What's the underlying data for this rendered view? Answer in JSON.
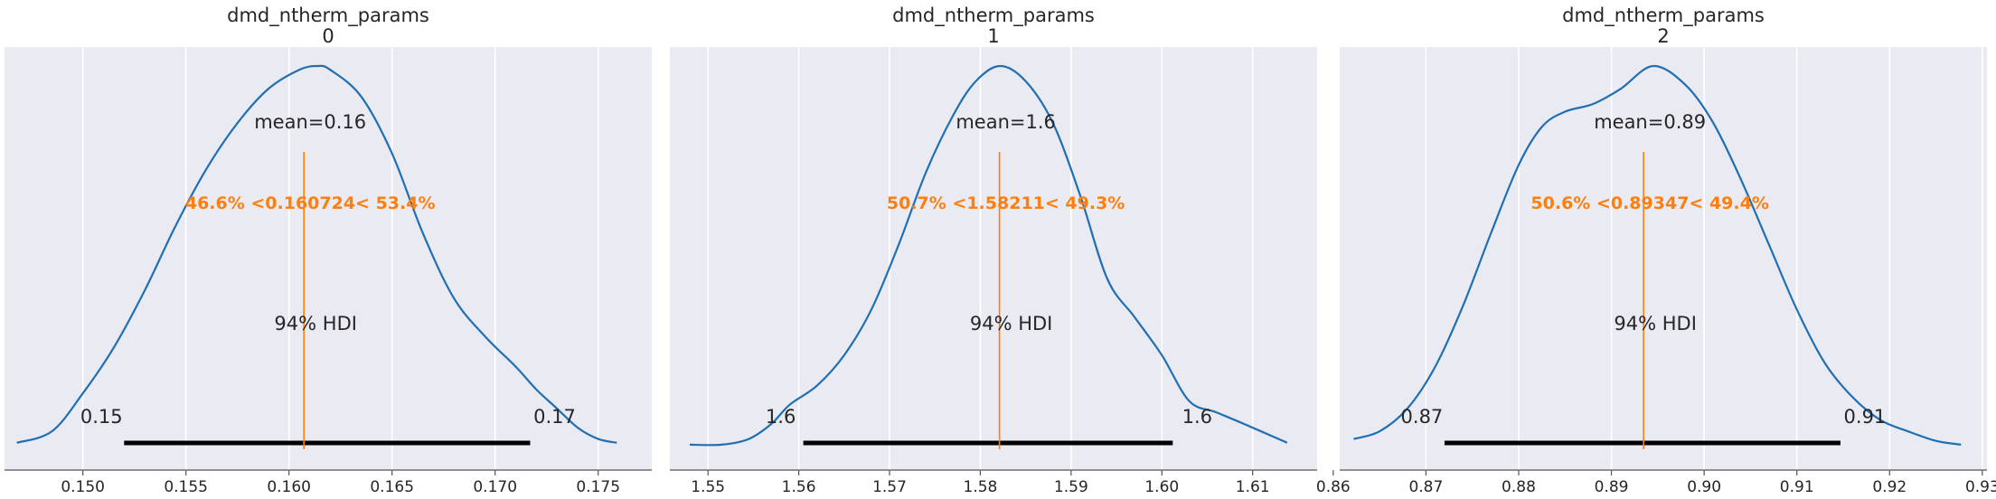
{
  "chart_data": [
    {
      "type": "area",
      "title": "dmd_ntherm_params",
      "subtitle": "0",
      "xlim": [
        0.1462,
        0.1776
      ],
      "xticks": [
        0.15,
        0.155,
        0.16,
        0.165,
        0.17,
        0.175
      ],
      "xtick_labels": [
        "0.150",
        "0.155",
        "0.160",
        "0.165",
        "0.170",
        "0.175"
      ],
      "grid": true,
      "kde": {
        "x": [
          0.1468,
          0.1485,
          0.15,
          0.1515,
          0.153,
          0.1545,
          0.156,
          0.1575,
          0.159,
          0.1605,
          0.1614,
          0.162,
          0.1635,
          0.165,
          0.1665,
          0.168,
          0.1695,
          0.171,
          0.172,
          0.173,
          0.174,
          0.175,
          0.1759
        ],
        "density": [
          0.01,
          0.04,
          0.14,
          0.26,
          0.41,
          0.58,
          0.73,
          0.85,
          0.94,
          0.99,
          1.0,
          0.99,
          0.92,
          0.77,
          0.56,
          0.39,
          0.29,
          0.21,
          0.15,
          0.1,
          0.05,
          0.02,
          0.01
        ]
      },
      "mean_label": "mean=0.16",
      "ref_value": 0.160724,
      "ref_label": "46.6% <0.160724< 53.4%",
      "hdi_label": "94% HDI",
      "hdi": [
        0.152,
        0.1717
      ],
      "hdi_low_label": "0.15",
      "hdi_high_label": "0.17"
    },
    {
      "type": "area",
      "title": "dmd_ntherm_params",
      "subtitle": "1",
      "xlim": [
        1.5458,
        1.6171
      ],
      "xticks": [
        1.55,
        1.56,
        1.57,
        1.58,
        1.59,
        1.6,
        1.61
      ],
      "xtick_labels": [
        "1.55",
        "1.56",
        "1.57",
        "1.58",
        "1.59",
        "1.60",
        "1.61"
      ],
      "grid": true,
      "kde": {
        "x": [
          1.548,
          1.5515,
          1.5545,
          1.557,
          1.559,
          1.562,
          1.565,
          1.568,
          1.571,
          1.574,
          1.577,
          1.5795,
          1.5822,
          1.585,
          1.588,
          1.591,
          1.594,
          1.597,
          1.6,
          1.603,
          1.606,
          1.609,
          1.6138
        ],
        "density": [
          0.005,
          0.005,
          0.02,
          0.06,
          0.11,
          0.16,
          0.24,
          0.36,
          0.53,
          0.72,
          0.87,
          0.96,
          1.0,
          0.96,
          0.85,
          0.66,
          0.44,
          0.34,
          0.24,
          0.12,
          0.09,
          0.06,
          0.01
        ]
      },
      "mean_label": "mean=1.6",
      "ref_value": 1.58211,
      "ref_label": "50.7% <1.58211< 49.3%",
      "hdi_label": "94% HDI",
      "hdi": [
        1.5605,
        1.6012
      ],
      "hdi_low_label": "1.6",
      "hdi_high_label": "1.6"
    },
    {
      "type": "area",
      "title": "dmd_ntherm_params",
      "subtitle": "2",
      "xlim": [
        0.8607,
        0.9305
      ],
      "xticks": [
        0.86,
        0.87,
        0.88,
        0.89,
        0.9,
        0.91,
        0.92,
        0.93
      ],
      "xtick_labels": [
        "0.86",
        "0.87",
        "0.88",
        "0.89",
        "0.90",
        "0.91",
        "0.92",
        "0.93"
      ],
      "grid": true,
      "kde": {
        "x": [
          0.8622,
          0.865,
          0.868,
          0.871,
          0.874,
          0.877,
          0.88,
          0.8825,
          0.885,
          0.888,
          0.891,
          0.8945,
          0.898,
          0.901,
          0.904,
          0.907,
          0.91,
          0.913,
          0.916,
          0.919,
          0.922,
          0.925,
          0.9277
        ],
        "density": [
          0.02,
          0.04,
          0.1,
          0.21,
          0.37,
          0.56,
          0.74,
          0.84,
          0.88,
          0.9,
          0.94,
          1.0,
          0.95,
          0.85,
          0.7,
          0.53,
          0.36,
          0.22,
          0.13,
          0.07,
          0.04,
          0.015,
          0.005
        ]
      },
      "mean_label": "mean=0.89",
      "ref_value": 0.89347,
      "ref_label": "50.6% <0.89347< 49.4%",
      "hdi_label": "94% HDI",
      "hdi": [
        0.872,
        0.9147
      ],
      "hdi_low_label": "0.87",
      "hdi_high_label": "0.91"
    }
  ],
  "colors": {
    "kde_line": "#1f6fb2",
    "reference": "#ff7f0e",
    "hdi_bar": "#000000",
    "panel_bg": "#eaeaf2",
    "grid": "#ffffff",
    "text": "#262626"
  }
}
